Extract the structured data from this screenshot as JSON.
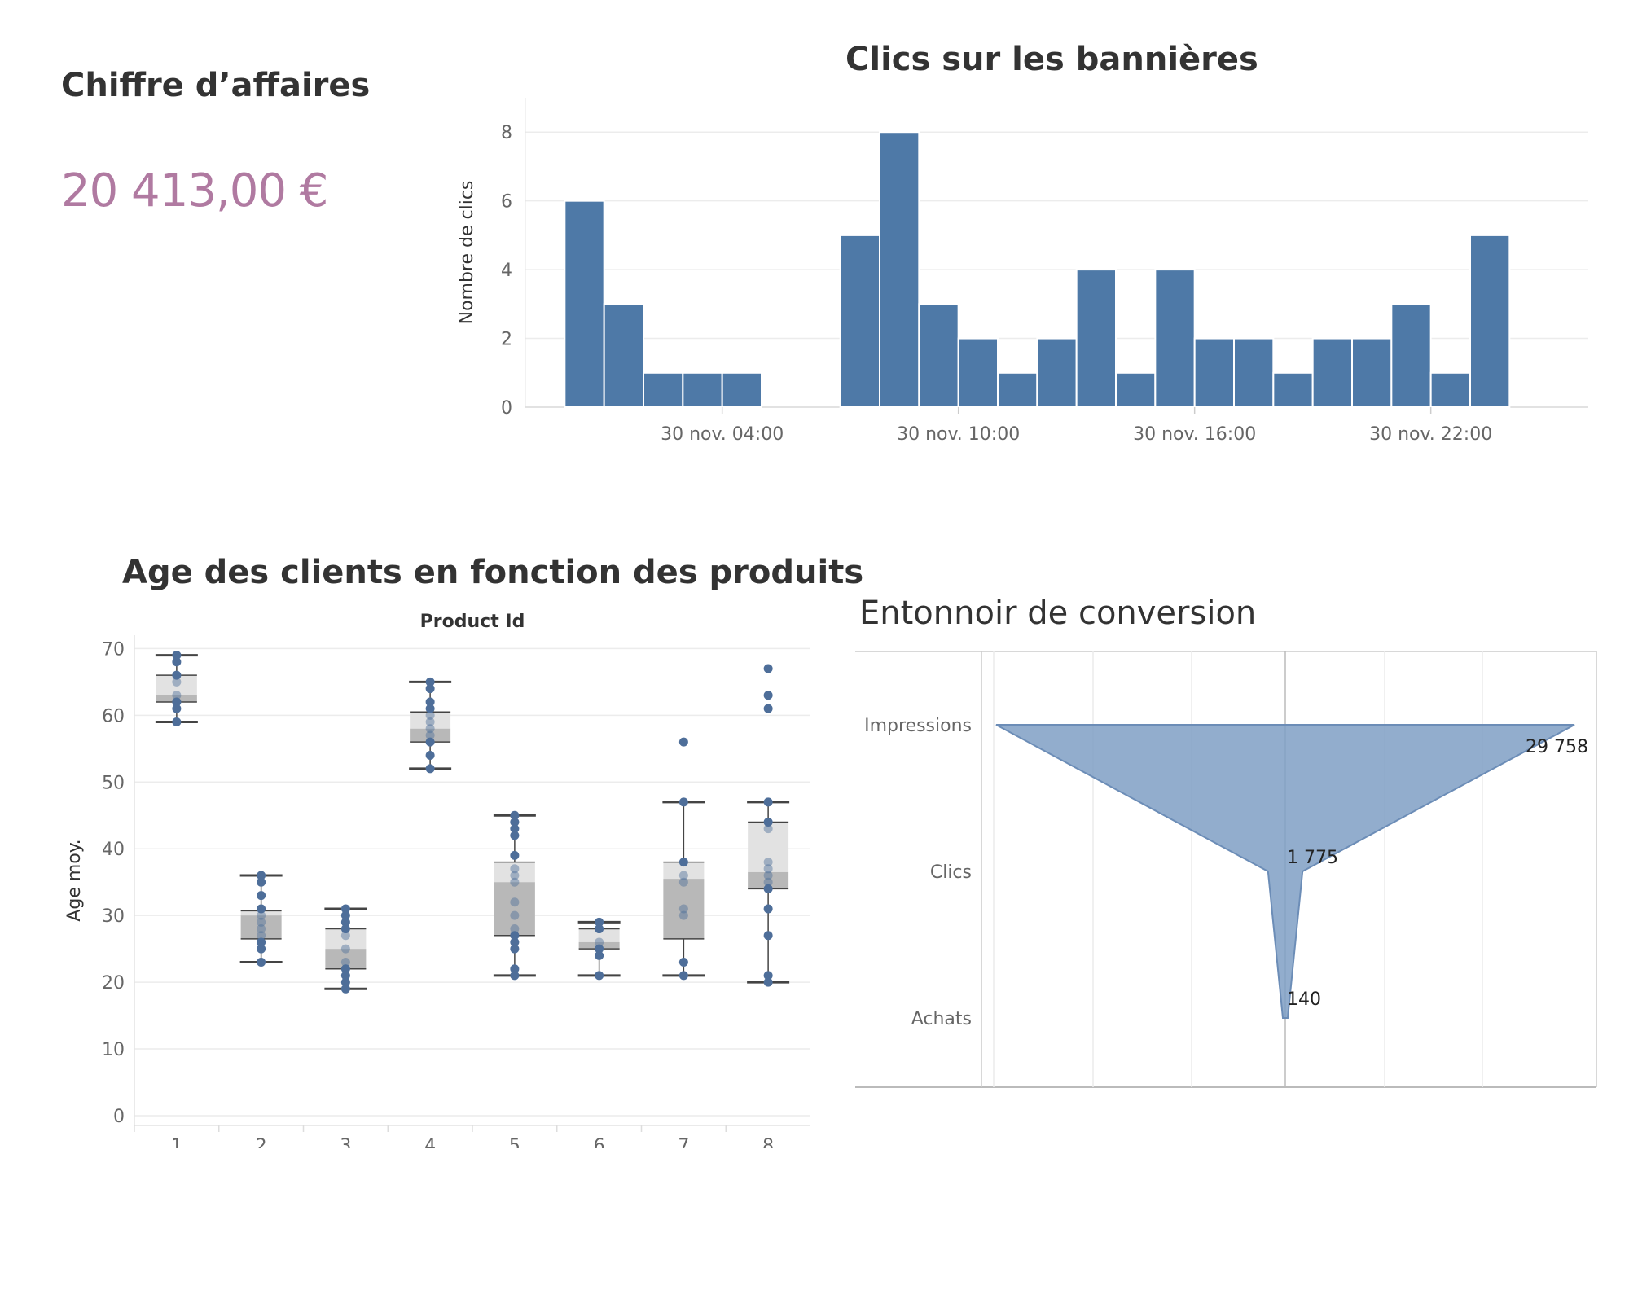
{
  "kpi": {
    "title": "Chiffre d’affaires",
    "value": "20 413,00 €",
    "color": "#B07AA1"
  },
  "colors": {
    "bar": "#4E79A7",
    "funnel": "#7F9FC4",
    "box_dark": "#B8B8B8",
    "box_light": "#E2E2E2",
    "dot": "#4E6E99",
    "grid": "#ECECEC",
    "text": "#333333",
    "axis_text": "#666666"
  },
  "chart_data": [
    {
      "id": "histogram",
      "type": "bar",
      "title": "Clics sur les bannières",
      "ylabel": "Nombre de clics",
      "ylim": [
        0,
        9
      ],
      "yticks": [
        0,
        2,
        4,
        6,
        8
      ],
      "x_tick_labels": [
        "30 nov. 04:00",
        "30 nov. 10:00",
        "30 nov. 16:00",
        "30 nov. 22:00"
      ],
      "x_tick_hours": [
        4,
        10,
        16,
        22
      ],
      "x_range_hours": [
        -1,
        26
      ],
      "bin_hours": 1,
      "categories": [
        "30 nov. 00:00",
        "30 nov. 01:00",
        "30 nov. 02:00",
        "30 nov. 03:00",
        "30 nov. 04:00",
        "30 nov. 05:00",
        "30 nov. 06:00",
        "30 nov. 07:00",
        "30 nov. 08:00",
        "30 nov. 09:00",
        "30 nov. 10:00",
        "30 nov. 11:00",
        "30 nov. 12:00",
        "30 nov. 13:00",
        "30 nov. 14:00",
        "30 nov. 15:00",
        "30 nov. 16:00",
        "30 nov. 17:00",
        "30 nov. 18:00",
        "30 nov. 19:00",
        "30 nov. 20:00",
        "30 nov. 21:00",
        "30 nov. 22:00",
        "30 nov. 23:00"
      ],
      "values": [
        6,
        3,
        1,
        1,
        1,
        0,
        0,
        5,
        8,
        3,
        2,
        1,
        2,
        4,
        1,
        4,
        2,
        2,
        1,
        2,
        2,
        3,
        1,
        5
      ],
      "grid": true
    },
    {
      "id": "boxplot",
      "type": "scatter",
      "title": "Age des clients en fonction des produits",
      "header": "Product Id",
      "ylabel": "Age moy.",
      "ylim": [
        0,
        72
      ],
      "yticks": [
        0,
        10,
        20,
        30,
        40,
        50,
        60,
        70
      ],
      "categories": [
        "1",
        "2",
        "3",
        "4",
        "5",
        "6",
        "7",
        "8"
      ],
      "boxes": [
        {
          "min": 59,
          "q1": 62,
          "median": 63,
          "q3": 66,
          "max": 69
        },
        {
          "min": 23,
          "q1": 26.5,
          "median": 30,
          "q3": 30.7,
          "max": 36
        },
        {
          "min": 19,
          "q1": 22,
          "median": 25,
          "q3": 28,
          "max": 31
        },
        {
          "min": 52,
          "q1": 56,
          "median": 58,
          "q3": 60.5,
          "max": 65
        },
        {
          "min": 21,
          "q1": 27,
          "median": 35,
          "q3": 38,
          "max": 45
        },
        {
          "min": 21,
          "q1": 25,
          "median": 26,
          "q3": 28,
          "max": 29
        },
        {
          "min": 21,
          "q1": 26.5,
          "median": 35.5,
          "q3": 38,
          "max": 47
        },
        {
          "min": 20,
          "q1": 34,
          "median": 36.5,
          "q3": 44,
          "max": 47
        }
      ],
      "points": [
        [
          59,
          61,
          62,
          63,
          65,
          66,
          68,
          69
        ],
        [
          23,
          25,
          26,
          27,
          28,
          29,
          30,
          31,
          33,
          35,
          36
        ],
        [
          19,
          20,
          21,
          22,
          23,
          25,
          27,
          28,
          29,
          30,
          31
        ],
        [
          52,
          54,
          56,
          57,
          58,
          59,
          60,
          61,
          62,
          64,
          65
        ],
        [
          21,
          22,
          25,
          26,
          27,
          28,
          30,
          32,
          35,
          36,
          37,
          39,
          42,
          43,
          44,
          45
        ],
        [
          21,
          24,
          25,
          26,
          28,
          29
        ],
        [
          21,
          23,
          30,
          31,
          35,
          36,
          38,
          47,
          56
        ],
        [
          20,
          21,
          27,
          31,
          34,
          35,
          36,
          37,
          38,
          43,
          44,
          47,
          61,
          63,
          67
        ]
      ],
      "grid": true
    },
    {
      "id": "funnel",
      "type": "area",
      "title": "Entonnoir de conversion",
      "categories": [
        "Impressions",
        "Clics",
        "Achats"
      ],
      "values": [
        29758,
        1775,
        140
      ],
      "value_labels": [
        "29 758",
        "1 775",
        "140"
      ],
      "grid": true
    }
  ]
}
